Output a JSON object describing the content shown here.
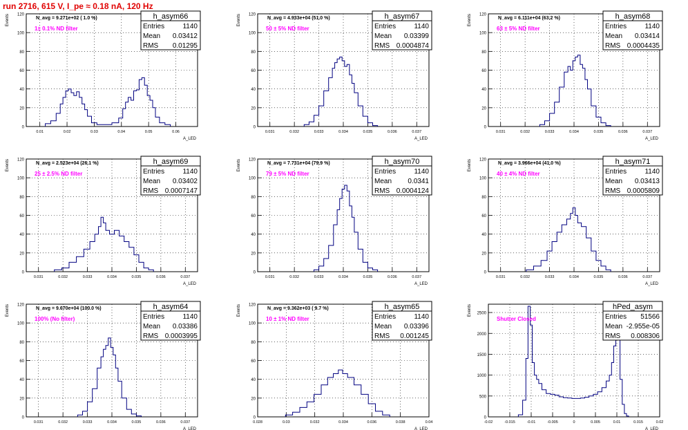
{
  "page_title": "run 2716,   615 V, I_pe ≈ 0.18 nA, 120 Hz",
  "colors": {
    "histogram": "#000080",
    "title": "#e00000",
    "annotation": "#ff00ff",
    "grid": "#000000"
  },
  "chart_data": [
    {
      "type": "histogram",
      "name": "h_asym66",
      "navg": "N_avg = 9.271e+02 ( 1.0 %)",
      "note": "1± 0.1% ND filter",
      "stats": {
        "Entries": "1140",
        "Mean": "0.03412",
        "RMS": "0.01295"
      },
      "xlabel": "A_LED",
      "ylabel": "Events",
      "xlim": [
        0.005,
        0.068
      ],
      "ylim": [
        0,
        120
      ],
      "xticks": [
        0.01,
        0.02,
        0.03,
        0.04,
        0.05,
        0.06
      ],
      "xtick_labels": [
        "0.01",
        "0.02",
        "0.03",
        "0.04",
        "0.05",
        "0.06"
      ],
      "yticks": [
        0,
        20,
        40,
        60,
        80,
        100,
        120
      ],
      "x": [
        0.013,
        0.015,
        0.017,
        0.018,
        0.019,
        0.02,
        0.021,
        0.022,
        0.023,
        0.024,
        0.025,
        0.026,
        0.027,
        0.028,
        0.03,
        0.032,
        0.035,
        0.038,
        0.04,
        0.041,
        0.042,
        0.043,
        0.044,
        0.045,
        0.046,
        0.047,
        0.048,
        0.049,
        0.05,
        0.051,
        0.052,
        0.053,
        0.055,
        0.057
      ],
      "y": [
        3,
        6,
        14,
        24,
        31,
        38,
        40,
        36,
        33,
        37,
        31,
        24,
        18,
        11,
        4,
        2,
        2,
        4,
        9,
        19,
        26,
        31,
        28,
        38,
        39,
        50,
        52,
        44,
        33,
        28,
        20,
        10,
        4,
        2
      ]
    },
    {
      "type": "histogram",
      "name": "h_asym67",
      "navg": "N_avg = 4.933e+04 (51.0 %)",
      "note": "50 ± 5% ND filter",
      "stats": {
        "Entries": "1140",
        "Mean": "0.03399",
        "RMS": "0.0004874"
      },
      "xlabel": "A_LED",
      "ylabel": "Events",
      "xlim": [
        0.0305,
        0.0375
      ],
      "ylim": [
        0,
        120
      ],
      "xticks": [
        0.031,
        0.032,
        0.033,
        0.034,
        0.035,
        0.036,
        0.037
      ],
      "xtick_labels": [
        "0.031",
        "0.032",
        "0.033",
        "0.034",
        "0.035",
        "0.036",
        "0.037"
      ],
      "yticks": [
        0,
        20,
        40,
        60,
        80,
        100,
        120
      ],
      "x": [
        0.0325,
        0.0327,
        0.0329,
        0.0331,
        0.0333,
        0.0335,
        0.0336,
        0.0337,
        0.0338,
        0.0339,
        0.034,
        0.0341,
        0.0342,
        0.0343,
        0.0344,
        0.0345,
        0.0347,
        0.0349,
        0.0351,
        0.0353
      ],
      "y": [
        2,
        5,
        12,
        22,
        38,
        52,
        62,
        68,
        72,
        74,
        70,
        64,
        66,
        55,
        46,
        36,
        22,
        11,
        4,
        1
      ]
    },
    {
      "type": "histogram",
      "name": "h_asym68",
      "navg": "N_avg = 6.111e+04 (63.2 %)",
      "note": "63 ± 5% ND filter",
      "stats": {
        "Entries": "1140",
        "Mean": "0.03414",
        "RMS": "0.0004435"
      },
      "xlabel": "A_LED",
      "ylabel": "Events",
      "xlim": [
        0.0305,
        0.0375
      ],
      "ylim": [
        0,
        120
      ],
      "xticks": [
        0.031,
        0.032,
        0.033,
        0.034,
        0.035,
        0.036,
        0.037
      ],
      "xtick_labels": [
        "0.031",
        "0.032",
        "0.033",
        "0.034",
        "0.035",
        "0.036",
        "0.037"
      ],
      "yticks": [
        0,
        20,
        40,
        60,
        80,
        100,
        120
      ],
      "x": [
        0.0327,
        0.0329,
        0.0331,
        0.0333,
        0.0335,
        0.0337,
        0.0338,
        0.0339,
        0.034,
        0.0341,
        0.0342,
        0.0343,
        0.0344,
        0.0345,
        0.0346,
        0.0348,
        0.035,
        0.0352,
        0.0354
      ],
      "y": [
        2,
        6,
        14,
        26,
        42,
        58,
        64,
        60,
        70,
        74,
        76,
        66,
        62,
        50,
        40,
        22,
        10,
        4,
        1
      ]
    },
    {
      "type": "histogram",
      "name": "h_asym69",
      "navg": "N_avg = 2.523e+04 (26.1 %)",
      "note": "25 ± 2.5% ND filter",
      "stats": {
        "Entries": "1140",
        "Mean": "0.03402",
        "RMS": "0.0007147"
      },
      "xlabel": "A_LED",
      "ylabel": "Events",
      "xlim": [
        0.0305,
        0.0375
      ],
      "ylim": [
        0,
        120
      ],
      "xticks": [
        0.031,
        0.032,
        0.033,
        0.034,
        0.035,
        0.036,
        0.037
      ],
      "xtick_labels": [
        "0.031",
        "0.032",
        "0.033",
        "0.034",
        "0.035",
        "0.036",
        "0.037"
      ],
      "yticks": [
        0,
        20,
        40,
        60,
        80,
        100,
        120
      ],
      "x": [
        0.0318,
        0.0321,
        0.0324,
        0.0327,
        0.033,
        0.0332,
        0.0334,
        0.0335,
        0.0336,
        0.0337,
        0.0338,
        0.034,
        0.0342,
        0.0344,
        0.0346,
        0.0348,
        0.035,
        0.0352,
        0.0354,
        0.0356
      ],
      "y": [
        2,
        4,
        10,
        16,
        24,
        32,
        40,
        48,
        58,
        52,
        44,
        40,
        44,
        38,
        32,
        26,
        18,
        10,
        4,
        2
      ]
    },
    {
      "type": "histogram",
      "name": "h_asym70",
      "navg": "N_avg = 7.731e+04 (79.9 %)",
      "note": "79 ± 5% ND filter",
      "stats": {
        "Entries": "1140",
        "Mean": "0.0341",
        "RMS": "0.0004124"
      },
      "xlabel": "A_LED",
      "ylabel": "Events",
      "xlim": [
        0.0305,
        0.0375
      ],
      "ylim": [
        0,
        120
      ],
      "xticks": [
        0.031,
        0.032,
        0.033,
        0.034,
        0.035,
        0.036,
        0.037
      ],
      "xtick_labels": [
        "0.031",
        "0.032",
        "0.033",
        "0.034",
        "0.035",
        "0.036",
        "0.037"
      ],
      "yticks": [
        0,
        20,
        40,
        60,
        80,
        100,
        120
      ],
      "x": [
        0.0329,
        0.0331,
        0.0333,
        0.0335,
        0.0337,
        0.0338,
        0.0339,
        0.034,
        0.0341,
        0.0342,
        0.0343,
        0.0344,
        0.0345,
        0.0347,
        0.0349,
        0.0351,
        0.0353
      ],
      "y": [
        2,
        6,
        14,
        28,
        50,
        66,
        78,
        88,
        92,
        86,
        70,
        58,
        42,
        24,
        10,
        4,
        2
      ]
    },
    {
      "type": "histogram",
      "name": "h_asym71",
      "navg": "N_avg = 3.966e+04 (41.0 %)",
      "note": "40 ± 4% ND filter",
      "stats": {
        "Entries": "1140",
        "Mean": "0.03413",
        "RMS": "0.0005809"
      },
      "xlabel": "A_LED",
      "ylabel": "Events",
      "xlim": [
        0.0305,
        0.0375
      ],
      "ylim": [
        0,
        120
      ],
      "xticks": [
        0.031,
        0.032,
        0.033,
        0.034,
        0.035,
        0.036,
        0.037
      ],
      "xtick_labels": [
        "0.031",
        "0.032",
        "0.033",
        "0.034",
        "0.035",
        "0.036",
        "0.037"
      ],
      "yticks": [
        0,
        20,
        40,
        60,
        80,
        100,
        120
      ],
      "x": [
        0.0322,
        0.0325,
        0.0328,
        0.033,
        0.0332,
        0.0334,
        0.0336,
        0.0338,
        0.0339,
        0.034,
        0.0341,
        0.0342,
        0.0344,
        0.0346,
        0.0348,
        0.035,
        0.0352,
        0.0354
      ],
      "y": [
        2,
        6,
        12,
        22,
        32,
        42,
        50,
        56,
        62,
        68,
        60,
        52,
        48,
        36,
        22,
        12,
        6,
        2
      ]
    },
    {
      "type": "histogram",
      "name": "h_asym64",
      "navg": "N_avg = 9.670e+04 (100.0 %)",
      "note": "100% (No filter)",
      "stats": {
        "Entries": "1140",
        "Mean": "0.03386",
        "RMS": "0.0003995"
      },
      "xlabel": "A_LED",
      "ylabel": "Events",
      "xlim": [
        0.0305,
        0.0375
      ],
      "ylim": [
        0,
        120
      ],
      "xticks": [
        0.031,
        0.032,
        0.033,
        0.034,
        0.035,
        0.036,
        0.037
      ],
      "xtick_labels": [
        "0.031",
        "0.032",
        "0.033",
        "0.034",
        "0.035",
        "0.036",
        "0.037"
      ],
      "yticks": [
        0,
        20,
        40,
        60,
        80,
        100,
        120
      ],
      "x": [
        0.0327,
        0.0329,
        0.0331,
        0.0333,
        0.0335,
        0.0336,
        0.0337,
        0.0338,
        0.0339,
        0.034,
        0.0341,
        0.0342,
        0.0343,
        0.0345,
        0.0347,
        0.0349,
        0.0351
      ],
      "y": [
        2,
        6,
        16,
        30,
        52,
        64,
        72,
        76,
        84,
        74,
        66,
        52,
        38,
        20,
        8,
        3,
        1
      ]
    },
    {
      "type": "histogram",
      "name": "h_asym65",
      "navg": "N_avg = 9.362e+03 ( 9.7 %)",
      "note": "10 ± 1% ND filter",
      "stats": {
        "Entries": "1140",
        "Mean": "0.03396",
        "RMS": "0.001245"
      },
      "xlabel": "A_LED",
      "ylabel": "Events",
      "xlim": [
        0.028,
        0.04
      ],
      "ylim": [
        0,
        120
      ],
      "xticks": [
        0.028,
        0.03,
        0.032,
        0.034,
        0.036,
        0.038,
        0.04
      ],
      "xtick_labels": [
        "0.028",
        "0.03",
        "0.032",
        "0.034",
        "0.036",
        "0.038",
        "0.04"
      ],
      "yticks": [
        0,
        20,
        40,
        60,
        80,
        100,
        120
      ],
      "x": [
        0.0302,
        0.0307,
        0.0312,
        0.0317,
        0.0322,
        0.0327,
        0.0331,
        0.0335,
        0.0338,
        0.0341,
        0.0345,
        0.035,
        0.0355,
        0.036,
        0.0365,
        0.037
      ],
      "y": [
        2,
        5,
        10,
        16,
        24,
        34,
        42,
        46,
        50,
        46,
        42,
        34,
        24,
        14,
        6,
        2
      ]
    },
    {
      "type": "histogram",
      "name": "hPed_asym",
      "navg": "",
      "note": "Shutter Closed",
      "stats": {
        "Entries": "51566",
        "Mean": "-2.955e-05",
        "RMS": "0.008306"
      },
      "xlabel": "A_LED",
      "ylabel": "Events",
      "xlim": [
        -0.02,
        0.02
      ],
      "ylim": [
        0,
        2700
      ],
      "xticks": [
        -0.02,
        -0.015,
        -0.01,
        -0.005,
        0,
        0.005,
        0.01,
        0.015,
        0.02
      ],
      "xtick_labels": [
        "-0.02",
        "-0.015",
        "-0.01",
        "-0.005",
        "0",
        "0.005",
        "0.01",
        "0.015",
        "0.02"
      ],
      "yticks": [
        0,
        500,
        1000,
        1500,
        2000,
        2500
      ],
      "x": [
        -0.0125,
        -0.0115,
        -0.011,
        -0.0105,
        -0.01,
        -0.0095,
        -0.009,
        -0.0085,
        -0.008,
        -0.007,
        -0.006,
        -0.005,
        -0.004,
        -0.003,
        -0.002,
        -0.001,
        0.0,
        0.001,
        0.002,
        0.003,
        0.004,
        0.005,
        0.006,
        0.007,
        0.008,
        0.0085,
        0.009,
        0.0095,
        0.01,
        0.0105,
        0.011,
        0.0115,
        0.012,
        0.0125
      ],
      "y": [
        50,
        400,
        1400,
        2650,
        2200,
        1300,
        1000,
        900,
        800,
        650,
        560,
        540,
        520,
        480,
        460,
        450,
        440,
        440,
        450,
        470,
        500,
        540,
        600,
        700,
        860,
        1000,
        1300,
        1700,
        2650,
        2000,
        900,
        300,
        80,
        20
      ]
    }
  ]
}
